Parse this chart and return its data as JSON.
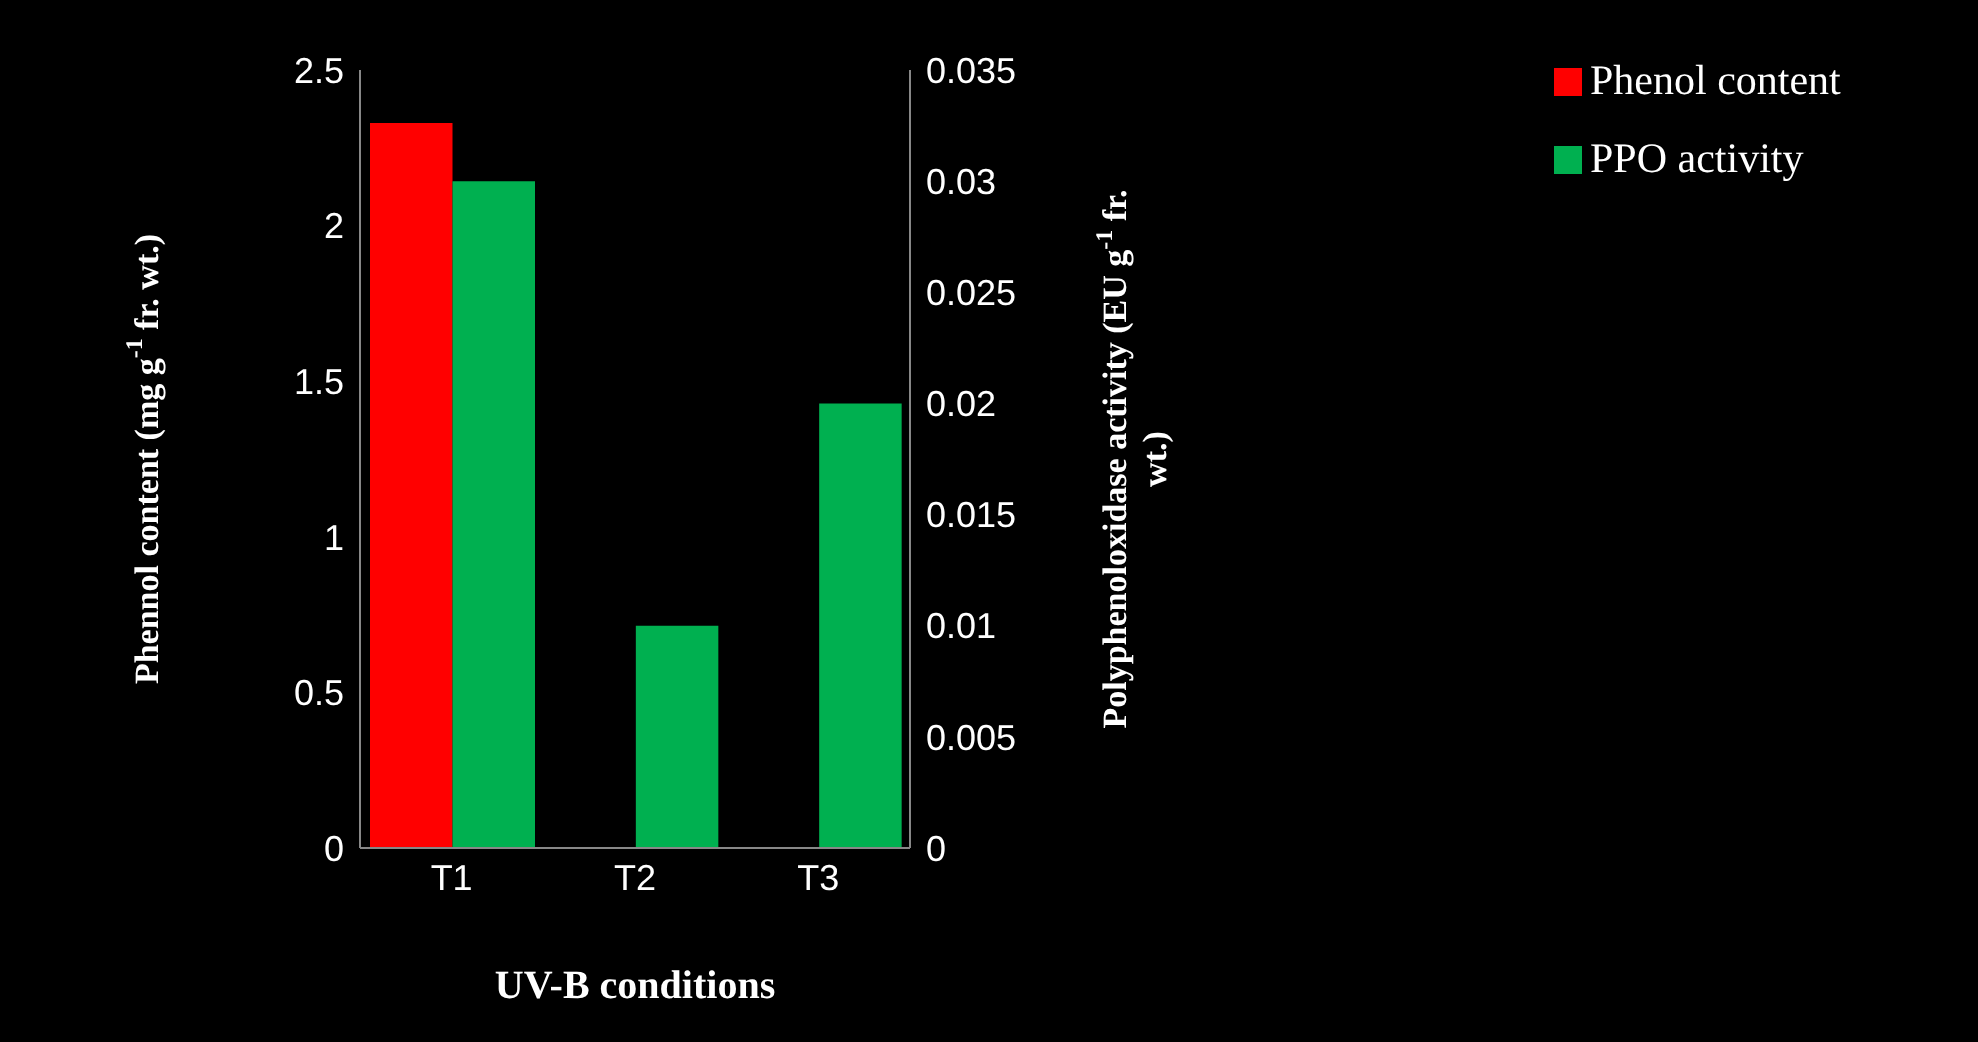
{
  "chart_data": {
    "type": "bar",
    "xlabel": "UV-B conditions",
    "ylabel": "Phennol content (mg g$^{-1}$ fr. wt.)",
    "y2label": "Polyphenoloxidase activity (EU g$^{-1}$ fr. wt.)",
    "categories": [
      "T1",
      "T2",
      "T3"
    ],
    "series": [
      {
        "name": "Phenol content",
        "color": "#ff0000",
        "values": [
          2.33,
          null,
          null
        ]
      },
      {
        "name": "PPO activity",
        "color": "#00b050",
        "values": [
          0.03,
          0.01,
          0.02
        ],
        "axis": "y2"
      }
    ],
    "ylim": [
      0,
      2.5
    ],
    "yticks": [
      0,
      0.5,
      1,
      1.5,
      2,
      2.5
    ],
    "y2lim": [
      0,
      0.035
    ],
    "y2ticks": [
      0,
      0.005,
      0.01,
      0.015,
      0.02,
      0.025,
      0.03,
      0.035
    ],
    "grid": false,
    "legend": "top right"
  }
}
